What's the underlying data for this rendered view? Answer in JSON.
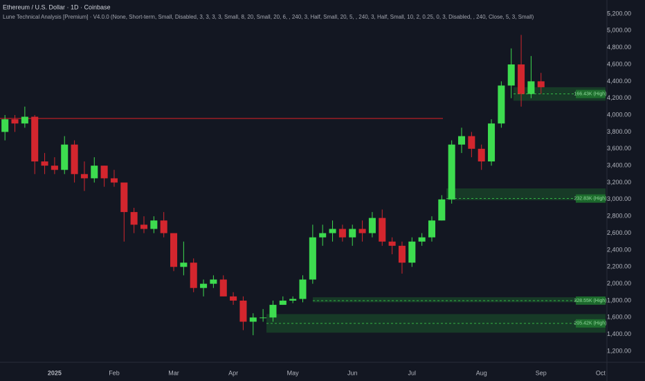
{
  "chart_data": {
    "type": "candlestick",
    "title": "Ethereum / U.S. Dollar · 1D · Coinbase",
    "subtitle": "Lune Technical Analysis [Premium] · V4.0.0 (None, Short-term, Small, Disabled, 3, 3, 3, 3, Small, 8, 20, Small, 20, 6, , 240, 3, Half, Small, 20, 5, , 240, 3, Half, Small, 10, 2, 0.25, 0, 3, Disabled, , 240, Close, 5, 3, Small)",
    "categories": [
      null,
      null,
      null,
      null,
      null,
      "2025",
      null,
      null,
      null,
      null,
      null,
      "Feb",
      null,
      null,
      null,
      null,
      null,
      "Mar",
      null,
      null,
      null,
      null,
      null,
      "Apr",
      null,
      null,
      null,
      null,
      null,
      "May",
      null,
      null,
      null,
      null,
      null,
      "Jun",
      null,
      null,
      null,
      null,
      null,
      "Jul",
      null,
      null,
      null,
      null,
      null,
      null,
      "Aug",
      null,
      null,
      null,
      null,
      null,
      "Sep",
      null,
      null,
      null,
      null,
      null,
      "Oct"
    ],
    "open": [
      3800,
      3950,
      3900,
      3980,
      3450,
      3400,
      3350,
      3650,
      3300,
      3250,
      3400,
      3250,
      3200,
      2850,
      2700,
      2650,
      2750,
      2600,
      2200,
      2250,
      1950,
      2000,
      2050,
      1850,
      1800,
      1550,
      1600,
      1600,
      1750,
      1800,
      1820,
      2050,
      2550,
      2600,
      2650,
      2550,
      2650,
      2600,
      2780,
      2500,
      2450,
      2250,
      2500,
      2550,
      2750,
      3000,
      3650,
      3750,
      3600,
      3450,
      3900,
      4350,
      4600,
      4250,
      4400,
      null,
      null,
      null,
      null,
      null,
      null
    ],
    "high": [
      4000,
      4000,
      4100,
      4000,
      3550,
      3500,
      3750,
      3700,
      3450,
      3500,
      3400,
      3350,
      3200,
      2900,
      2800,
      2800,
      2850,
      2600,
      2500,
      2300,
      2050,
      2100,
      2100,
      1900,
      1850,
      1650,
      1700,
      1800,
      1850,
      1850,
      2100,
      2700,
      2700,
      2750,
      2700,
      2700,
      2750,
      2850,
      2880,
      2550,
      2500,
      2550,
      2600,
      2800,
      3050,
      3700,
      3850,
      3800,
      3650,
      3950,
      4400,
      4790,
      4950,
      4700,
      4500,
      null,
      null,
      null,
      null,
      null,
      null
    ],
    "low": [
      3700,
      3800,
      3850,
      3300,
      3300,
      3300,
      3300,
      3200,
      3100,
      3200,
      3150,
      3150,
      2500,
      2600,
      2600,
      2600,
      2550,
      2150,
      2100,
      1900,
      1850,
      1950,
      1850,
      1750,
      1450,
      1390,
      1550,
      1550,
      1750,
      1770,
      1780,
      2000,
      2450,
      2500,
      2500,
      2450,
      2500,
      2550,
      2450,
      2350,
      2120,
      2200,
      2450,
      2500,
      2750,
      2950,
      3550,
      3500,
      3350,
      3400,
      3850,
      4200,
      4100,
      4200,
      4250,
      null,
      null,
      null,
      null,
      null,
      null
    ],
    "close": [
      3950,
      3900,
      3980,
      3450,
      3400,
      3350,
      3650,
      3300,
      3250,
      3400,
      3250,
      3200,
      2850,
      2700,
      2650,
      2750,
      2600,
      2200,
      2250,
      1950,
      2000,
      2050,
      1850,
      1800,
      1550,
      1600,
      1600,
      1750,
      1800,
      1820,
      2050,
      2550,
      2600,
      2650,
      2550,
      2650,
      2600,
      2780,
      2500,
      2450,
      2250,
      2500,
      2550,
      2750,
      3000,
      3650,
      3750,
      3600,
      3450,
      3900,
      4350,
      4600,
      4250,
      4400,
      4330,
      null,
      null,
      null,
      null,
      null,
      null
    ],
    "up_color": "#3ddc4f",
    "down_color": "#d3262e",
    "ylim": [
      1077,
      5364
    ],
    "yticks": [
      {
        "value": 1200,
        "label": "1,200.00"
      },
      {
        "value": 1400,
        "label": "1,400.00"
      },
      {
        "value": 1600,
        "label": "1,600.00"
      },
      {
        "value": 1800,
        "label": "1,800.00"
      },
      {
        "value": 2000,
        "label": "2,000.00"
      },
      {
        "value": 2200,
        "label": "2,200.00"
      },
      {
        "value": 2400,
        "label": "2,400.00"
      },
      {
        "value": 2600,
        "label": "2,600.00"
      },
      {
        "value": 2800,
        "label": "2,800.00"
      },
      {
        "value": 3000,
        "label": "3,000.00"
      },
      {
        "value": 3200,
        "label": "3,200.00"
      },
      {
        "value": 3400,
        "label": "3,400.00"
      },
      {
        "value": 3600,
        "label": "3,600.00"
      },
      {
        "value": 3800,
        "label": "3,800.00"
      },
      {
        "value": 4000,
        "label": "4,000.00"
      },
      {
        "value": 4200,
        "label": "4,200.00"
      },
      {
        "value": 4400,
        "label": "4,400.00"
      },
      {
        "value": 4600,
        "label": "4,600.00"
      },
      {
        "value": 4800,
        "label": "4,800.00"
      },
      {
        "value": 5000,
        "label": "5,000.00"
      },
      {
        "value": 5200,
        "label": "5,200.00"
      }
    ],
    "grid": false,
    "resistance": {
      "value": 3960,
      "color": "#7a1c24"
    },
    "zones": [
      {
        "label": "166.43K (High)",
        "top": 4330,
        "bottom": 4170,
        "level": 4250
      },
      {
        "label": "232.83K (High)",
        "top": 3130,
        "bottom": 2990,
        "level": 3010
      },
      {
        "label": "328.55K (High)",
        "top": 1840,
        "bottom": 1780,
        "level": 1800
      },
      {
        "label": "205.42K (High)",
        "top": 1640,
        "bottom": 1420,
        "level": 1530
      }
    ],
    "zone_color": "#1f7a30"
  }
}
